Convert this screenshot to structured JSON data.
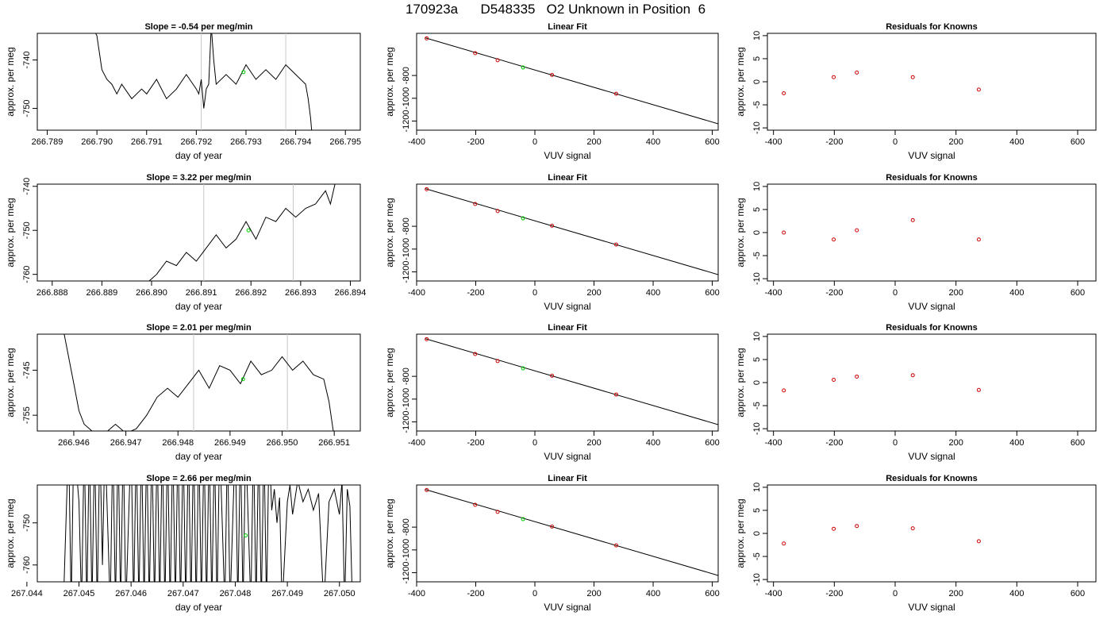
{
  "title": {
    "run_id": "170923a",
    "tank_id": "D548335",
    "label": "O2 Unknown in Position",
    "position": "6"
  },
  "colors": {
    "trace": "#000000",
    "known": "#cc0000",
    "unknown": "#00cc00",
    "window": "#c8c8c8",
    "fit": "#000000"
  },
  "chart_data": [
    {
      "type": "line",
      "row": 1,
      "panel": "time-series",
      "slope_label": "Slope =",
      "slope_value": "-0.54",
      "slope_unit": "per meg/min",
      "xlabel": "day of year",
      "ylabel": "approx. per meg",
      "xlim": [
        266.7888,
        266.7953
      ],
      "ylim": [
        -754.5,
        -734.5
      ],
      "xticks": [
        "266.789",
        "266.790",
        "266.791",
        "266.792",
        "266.793",
        "266.794",
        "266.795"
      ],
      "yticks": [
        "-740",
        "-750"
      ],
      "window": [
        266.7921,
        266.7938
      ],
      "series": [
        {
          "x": [
            266.78985,
            266.79,
            266.7901,
            266.7902,
            266.7903,
            266.7904,
            266.7905,
            266.7907,
            266.7909,
            266.791,
            266.7912,
            266.7914,
            266.7916,
            266.7918,
            266.792,
            266.79205,
            266.7921,
            266.79215,
            266.7922,
            266.79225,
            266.7923,
            266.79235,
            266.7924,
            266.7926,
            266.7928,
            266.793,
            266.7932,
            266.7934,
            266.7936,
            266.7938,
            266.794,
            266.7942,
            266.79425,
            266.7943,
            266.79435
          ],
          "y": [
            -732,
            -735,
            -742,
            -744,
            -745,
            -747,
            -745,
            -748,
            -746,
            -747,
            -744,
            -748,
            -746,
            -743,
            -746,
            -747,
            -744,
            -750,
            -746,
            -745,
            -733,
            -740,
            -745,
            -743,
            -745,
            -741,
            -744,
            -742,
            -744,
            -741,
            -743,
            -745,
            -748,
            -752,
            -758
          ]
        }
      ],
      "unknown_point": {
        "x": 266.79295,
        "y": -742.5
      }
    },
    {
      "type": "scatter",
      "row": 1,
      "panel": "linear-fit",
      "title": "Linear Fit",
      "xlabel": "VUV signal",
      "ylabel": "approx. per meg",
      "xlim": [
        -400,
        620
      ],
      "ylim": [
        -1280,
        -430
      ],
      "xticks": [
        "-400",
        "-200",
        "0",
        "200",
        "400",
        "600"
      ],
      "yticks": [
        "-800",
        "-1000",
        "-1200"
      ],
      "knowns": {
        "x": [
          -366,
          -202,
          -126,
          58,
          275
        ],
        "y": [
          -474,
          -604,
          -666,
          -795,
          -960
        ]
      },
      "unknown_point": {
        "x": -40,
        "y": -730
      },
      "fit_line": {
        "x": [
          -370,
          620
        ],
        "y": [
          -470,
          -1224
        ]
      }
    },
    {
      "type": "scatter",
      "row": 1,
      "panel": "residuals",
      "title": "Residuals for Knowns",
      "xlabel": "VUV signal",
      "ylabel": "approx. per meg",
      "xlim": [
        -420,
        660
      ],
      "ylim": [
        -10.5,
        10.5
      ],
      "xticks": [
        "-400",
        "-200",
        "0",
        "200",
        "400",
        "600"
      ],
      "yticks": [
        "-10",
        "-5",
        "0",
        "5",
        "10"
      ],
      "residuals": {
        "x": [
          -366,
          -202,
          -126,
          58,
          275
        ],
        "y": [
          -2.5,
          1.0,
          2.0,
          1.0,
          -1.7
        ]
      }
    },
    {
      "type": "line",
      "row": 2,
      "panel": "time-series",
      "slope_label": "Slope =",
      "slope_value": "3.22",
      "slope_unit": "per meg/min",
      "xlabel": "day of year",
      "ylabel": "approx. per meg",
      "xlim": [
        266.8877,
        266.8942
      ],
      "ylim": [
        -761.5,
        -739.5
      ],
      "xticks": [
        "266.888",
        "266.889",
        "266.890",
        "266.891",
        "266.892",
        "266.893",
        "266.894"
      ],
      "yticks": [
        "-740",
        "-750",
        "-760"
      ],
      "window": [
        266.89105,
        266.89285
      ],
      "series": [
        {
          "x": [
            266.8899,
            266.8901,
            266.8903,
            266.8905,
            266.8907,
            266.8909,
            266.8911,
            266.8913,
            266.8915,
            266.8917,
            266.8919,
            266.8921,
            266.8923,
            266.8925,
            266.8927,
            266.8929,
            266.8931,
            266.8933,
            266.8935,
            266.8936,
            266.8937
          ],
          "y": [
            -762,
            -760,
            -757,
            -758,
            -755,
            -757,
            -754,
            -751,
            -754,
            -752,
            -748,
            -752,
            -747,
            -748,
            -745,
            -747,
            -745,
            -744,
            -741,
            -744,
            -739
          ]
        }
      ],
      "unknown_point": {
        "x": 266.89195,
        "y": -750
      }
    },
    {
      "type": "scatter",
      "row": 2,
      "panel": "linear-fit",
      "title": "Linear Fit",
      "xlabel": "VUV signal",
      "ylabel": "approx. per meg",
      "xlim": [
        -400,
        620
      ],
      "ylim": [
        -1280,
        -430
      ],
      "xticks": [
        "-400",
        "-200",
        "0",
        "200",
        "400",
        "600"
      ],
      "yticks": [
        "-800",
        "-1000",
        "-1200"
      ],
      "knowns": {
        "x": [
          -366,
          -202,
          -126,
          58,
          275
        ],
        "y": [
          -474,
          -604,
          -666,
          -795,
          -960
        ]
      },
      "unknown_point": {
        "x": -40,
        "y": -730
      },
      "fit_line": {
        "x": [
          -370,
          620
        ],
        "y": [
          -470,
          -1224
        ]
      }
    },
    {
      "type": "scatter",
      "row": 2,
      "panel": "residuals",
      "title": "Residuals for Knowns",
      "xlabel": "VUV signal",
      "ylabel": "approx. per meg",
      "xlim": [
        -420,
        660
      ],
      "ylim": [
        -10.5,
        10.5
      ],
      "xticks": [
        "-400",
        "-200",
        "0",
        "200",
        "400",
        "600"
      ],
      "yticks": [
        "-10",
        "-5",
        "0",
        "5",
        "10"
      ],
      "residuals": {
        "x": [
          -366,
          -202,
          -126,
          58,
          275
        ],
        "y": [
          0.0,
          -1.5,
          0.5,
          2.7,
          -1.5
        ]
      }
    },
    {
      "type": "line",
      "row": 3,
      "panel": "time-series",
      "slope_label": "Slope =",
      "slope_value": "2.01",
      "slope_unit": "per meg/min",
      "xlabel": "day of year",
      "ylabel": "approx. per meg",
      "xlim": [
        266.9453,
        266.9515
      ],
      "ylim": [
        -758.5,
        -737
      ],
      "xticks": [
        "266.946",
        "266.947",
        "266.948",
        "266.949",
        "266.950",
        "266.951"
      ],
      "yticks": [
        "-745",
        "-755"
      ],
      "window": [
        266.9483,
        266.9501
      ],
      "series": [
        {
          "x": [
            266.9458,
            266.9459,
            266.946,
            266.9461,
            266.9462,
            266.9464,
            266.9466,
            266.9468,
            266.947,
            266.9472,
            266.9474,
            266.9476,
            266.9478,
            266.948,
            266.9482,
            266.9484,
            266.9486,
            266.9488,
            266.949,
            266.9492,
            266.9494,
            266.9496,
            266.9498,
            266.95,
            266.9502,
            266.9504,
            266.9506,
            266.9508,
            266.9509,
            266.951
          ],
          "y": [
            -736,
            -742,
            -748,
            -754,
            -757,
            -759,
            -759,
            -757,
            -759,
            -758,
            -755,
            -751,
            -749,
            -751,
            -748,
            -745,
            -749,
            -744,
            -745,
            -748,
            -743,
            -746,
            -745,
            -742,
            -745,
            -743,
            -746,
            -747,
            -752,
            -760
          ]
        }
      ],
      "unknown_point": {
        "x": 266.94925,
        "y": -747
      }
    },
    {
      "type": "scatter",
      "row": 3,
      "panel": "linear-fit",
      "title": "Linear Fit",
      "xlabel": "VUV signal",
      "ylabel": "approx. per meg",
      "xlim": [
        -400,
        620
      ],
      "ylim": [
        -1280,
        -430
      ],
      "xticks": [
        "-400",
        "-200",
        "0",
        "200",
        "400",
        "600"
      ],
      "yticks": [
        "-800",
        "-1000",
        "-1200"
      ],
      "knowns": {
        "x": [
          -366,
          -202,
          -126,
          58,
          275
        ],
        "y": [
          -474,
          -604,
          -666,
          -795,
          -960
        ]
      },
      "unknown_point": {
        "x": -40,
        "y": -730
      },
      "fit_line": {
        "x": [
          -370,
          620
        ],
        "y": [
          -470,
          -1224
        ]
      }
    },
    {
      "type": "scatter",
      "row": 3,
      "panel": "residuals",
      "title": "Residuals for Knowns",
      "xlabel": "VUV signal",
      "ylabel": "approx. per meg",
      "xlim": [
        -420,
        660
      ],
      "ylim": [
        -10.5,
        10.5
      ],
      "xticks": [
        "-400",
        "-200",
        "0",
        "200",
        "400",
        "600"
      ],
      "yticks": [
        "-10",
        "-5",
        "0",
        "5",
        "10"
      ],
      "residuals": {
        "x": [
          -366,
          -202,
          -126,
          58,
          275
        ],
        "y": [
          -1.7,
          0.6,
          1.3,
          1.6,
          -1.6
        ]
      }
    },
    {
      "type": "line",
      "row": 4,
      "panel": "time-series",
      "slope_label": "Slope =",
      "slope_value": "2.66",
      "slope_unit": "per meg/min",
      "xlabel": "day of year",
      "ylabel": "approx. per meg",
      "xlim": [
        267.0442,
        267.0504
      ],
      "ylim": [
        -764,
        -741
      ],
      "xticks": [
        "267.044",
        "267.045",
        "267.046",
        "267.047",
        "267.048",
        "267.049",
        "267.050"
      ],
      "yticks": [
        "-750",
        "-760"
      ],
      "window": null,
      "series": [
        {
          "x": [
            267.0447,
            267.0448,
            267.04485,
            267.0449,
            267.045,
            267.04505,
            267.0451,
            267.04515,
            267.0452,
            267.04525,
            267.0453,
            267.04535,
            267.0454,
            267.04545,
            267.0455,
            267.0456,
            267.04565,
            267.0457,
            267.04575,
            267.0458,
            267.04585,
            267.0459,
            267.046,
            267.04605,
            267.0461,
            267.04615,
            267.0462,
            267.04625,
            267.0463,
            267.04635,
            267.0464,
            267.04645,
            267.0465,
            267.04655,
            267.0466,
            267.04665,
            267.0467,
            267.04675,
            267.0468,
            267.04685,
            267.0469,
            267.04695,
            267.047,
            267.04705,
            267.0471,
            267.04715,
            267.0472,
            267.04725,
            267.0473,
            267.04735,
            267.0474,
            267.04745,
            267.0475,
            267.04755,
            267.0476,
            267.04765,
            267.0477,
            267.0478,
            267.04785,
            267.0479,
            267.048,
            267.04805,
            267.0481,
            267.04815,
            267.0482,
            267.0483,
            267.04835,
            267.0484,
            267.04845,
            267.0485,
            267.04855,
            267.0486,
            267.04865,
            267.0487,
            267.04875,
            267.0488,
            267.04885,
            267.0489,
            267.049,
            267.04905,
            267.0491,
            267.0492,
            267.0493,
            267.0494,
            267.0495,
            267.0496,
            267.0497,
            267.0498,
            267.0499,
            267.05,
            267.05005,
            267.0501,
            267.05015,
            267.0502,
            267.05025
          ],
          "y": [
            -770,
            -730,
            -770,
            -730,
            -745,
            -770,
            -730,
            -770,
            -730,
            -770,
            -730,
            -770,
            -730,
            -760,
            -730,
            -770,
            -730,
            -770,
            -730,
            -770,
            -730,
            -770,
            -730,
            -770,
            -730,
            -770,
            -730,
            -770,
            -730,
            -770,
            -730,
            -770,
            -730,
            -770,
            -730,
            -770,
            -730,
            -770,
            -730,
            -770,
            -730,
            -770,
            -730,
            -770,
            -730,
            -770,
            -730,
            -770,
            -730,
            -770,
            -730,
            -770,
            -730,
            -770,
            -730,
            -770,
            -730,
            -770,
            -730,
            -770,
            -730,
            -770,
            -730,
            -770,
            -730,
            -770,
            -730,
            -770,
            -730,
            -770,
            -730,
            -770,
            -730,
            -747,
            -742,
            -750,
            -744,
            -770,
            -745,
            -741,
            -748,
            -740,
            -745,
            -742,
            -747,
            -743,
            -770,
            -745,
            -742,
            -748,
            -740,
            -770,
            -742,
            -746,
            -770
          ]
        }
      ],
      "unknown_point": {
        "x": 267.0482,
        "y": -753
      }
    },
    {
      "type": "scatter",
      "row": 4,
      "panel": "linear-fit",
      "title": "Linear Fit",
      "xlabel": "VUV signal",
      "ylabel": "approx. per meg",
      "xlim": [
        -400,
        620
      ],
      "ylim": [
        -1280,
        -430
      ],
      "xticks": [
        "-400",
        "-200",
        "0",
        "200",
        "400",
        "600"
      ],
      "yticks": [
        "-800",
        "-1000",
        "-1200"
      ],
      "knowns": {
        "x": [
          -366,
          -202,
          -126,
          58,
          275
        ],
        "y": [
          -474,
          -604,
          -666,
          -795,
          -960
        ]
      },
      "unknown_point": {
        "x": -40,
        "y": -730
      },
      "fit_line": {
        "x": [
          -370,
          620
        ],
        "y": [
          -470,
          -1224
        ]
      }
    },
    {
      "type": "scatter",
      "row": 4,
      "panel": "residuals",
      "title": "Residuals for Knowns",
      "xlabel": "VUV signal",
      "ylabel": "approx. per meg",
      "xlim": [
        -420,
        660
      ],
      "ylim": [
        -10.5,
        10.5
      ],
      "xticks": [
        "-400",
        "-200",
        "0",
        "200",
        "400",
        "600"
      ],
      "yticks": [
        "-10",
        "-5",
        "0",
        "5",
        "10"
      ],
      "residuals": {
        "x": [
          -366,
          -202,
          -126,
          58,
          275
        ],
        "y": [
          -2.2,
          1.0,
          1.6,
          1.1,
          -1.7
        ]
      }
    }
  ]
}
